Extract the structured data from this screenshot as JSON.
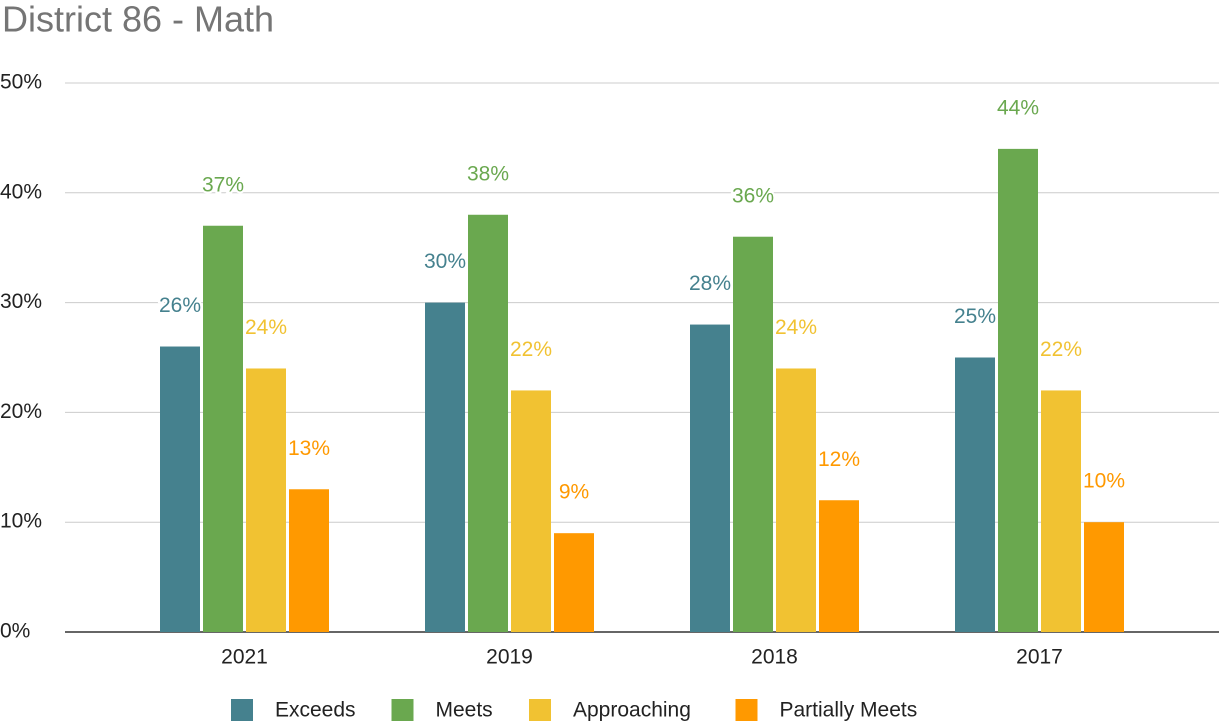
{
  "chart_data": {
    "type": "bar",
    "title": "District 86 - Math",
    "categories": [
      "2021",
      "2019",
      "2018",
      "2017"
    ],
    "series": [
      {
        "name": "Exceeds",
        "color": "#45818e",
        "values": [
          26,
          30,
          28,
          25
        ],
        "value_labels": [
          "26%",
          "30%",
          "28%",
          "25%"
        ]
      },
      {
        "name": "Meets",
        "color": "#6aa84f",
        "values": [
          37,
          38,
          36,
          44
        ],
        "value_labels": [
          "37%",
          "38%",
          "36%",
          "44%"
        ]
      },
      {
        "name": "Approaching",
        "color": "#f1c232",
        "values": [
          24,
          22,
          24,
          22
        ],
        "value_labels": [
          "24%",
          "22%",
          "24%",
          "22%"
        ]
      },
      {
        "name": "Partially Meets",
        "color": "#ff9900",
        "values": [
          13,
          9,
          12,
          10
        ],
        "value_labels": [
          "13%",
          "9%",
          "12%",
          "10%"
        ]
      }
    ],
    "ylim": [
      0,
      50
    ],
    "yticks": [
      {
        "value": 0,
        "label": "0%"
      },
      {
        "value": 10,
        "label": "10%"
      },
      {
        "value": 20,
        "label": "20%"
      },
      {
        "value": 30,
        "label": "30%"
      },
      {
        "value": 40,
        "label": "40%"
      },
      {
        "value": 50,
        "label": "50%"
      }
    ],
    "grid": true,
    "legend": "bottom"
  }
}
